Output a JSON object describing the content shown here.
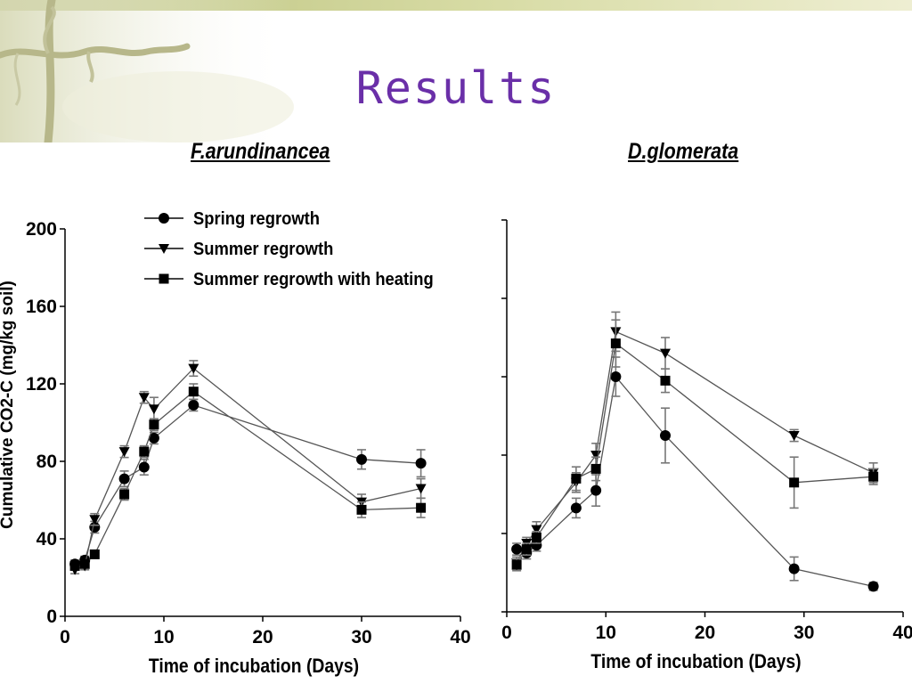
{
  "slide": {
    "title": "Results",
    "colors": {
      "title": "#6a2fa8",
      "band": "#c8cc8e",
      "decor": "#b9b98a"
    }
  },
  "chart_data": [
    {
      "type": "line",
      "title": "F.arundinancea",
      "xlabel": "Time of incubation (Days)",
      "ylabel": "Cumulative CO2-C (mg/kg soil)",
      "xlim": [
        0,
        40
      ],
      "ylim": [
        0,
        200
      ],
      "xticks": [
        0,
        10,
        20,
        30,
        40
      ],
      "yticks": [
        0,
        40,
        80,
        120,
        160,
        200
      ],
      "grid": false,
      "legend": "top-left",
      "series": [
        {
          "name": "Spring regrowth",
          "marker": "circle",
          "points": [
            [
              1,
              27
            ],
            [
              2,
              29
            ],
            [
              3,
              46
            ],
            [
              6,
              71
            ],
            [
              8,
              77
            ],
            [
              9,
              92
            ],
            [
              13,
              109
            ],
            [
              30,
              81
            ],
            [
              36,
              79
            ]
          ],
          "err": [
            2,
            2,
            3,
            4,
            4,
            3,
            3,
            5,
            7
          ]
        },
        {
          "name": "Summer regrowth",
          "marker": "triangle-down",
          "points": [
            [
              1,
              24
            ],
            [
              2,
              26
            ],
            [
              3,
              50
            ],
            [
              6,
              85
            ],
            [
              8,
              113
            ],
            [
              9,
              107
            ],
            [
              13,
              128
            ],
            [
              30,
              59
            ],
            [
              36,
              66
            ]
          ],
          "err": [
            2,
            2,
            3,
            3,
            3,
            6,
            4,
            4,
            5
          ]
        },
        {
          "name": "Summer regrowth with heating",
          "marker": "square",
          "points": [
            [
              1,
              26
            ],
            [
              2,
              27
            ],
            [
              3,
              32
            ],
            [
              6,
              63
            ],
            [
              8,
              85
            ],
            [
              9,
              99
            ],
            [
              13,
              116
            ],
            [
              30,
              55
            ],
            [
              36,
              56
            ]
          ],
          "err": [
            2,
            2,
            2,
            3,
            3,
            3,
            4,
            4,
            5
          ]
        }
      ]
    },
    {
      "type": "line",
      "title": "D.glomerata",
      "xlabel": "Time of incubation (Days)",
      "ylabel": "",
      "xlim": [
        0,
        40
      ],
      "ylim": [
        0,
        200
      ],
      "xticks": [
        0,
        10,
        20,
        30,
        40
      ],
      "yticks": [
        0,
        40,
        80,
        120,
        160,
        200
      ],
      "show_ytick_labels": false,
      "grid": false,
      "legend": "none",
      "series": [
        {
          "name": "Spring regrowth",
          "marker": "circle",
          "points": [
            [
              1,
              32
            ],
            [
              2,
              30
            ],
            [
              3,
              34
            ],
            [
              7,
              53
            ],
            [
              9,
              62
            ],
            [
              11,
              120
            ],
            [
              16,
              90
            ],
            [
              29,
              22
            ],
            [
              37,
              13
            ]
          ],
          "err": [
            3,
            3,
            3,
            5,
            8,
            10,
            14,
            6,
            2
          ]
        },
        {
          "name": "Summer regrowth",
          "marker": "triangle-down",
          "points": [
            [
              1,
              25
            ],
            [
              2,
              35
            ],
            [
              3,
              42
            ],
            [
              7,
              66
            ],
            [
              9,
              80
            ],
            [
              11,
              143
            ],
            [
              16,
              132
            ],
            [
              29,
              90
            ],
            [
              37,
              71
            ]
          ],
          "err": [
            3,
            3,
            4,
            5,
            6,
            10,
            8,
            3,
            5
          ]
        },
        {
          "name": "Summer regrowth with heating",
          "marker": "square",
          "points": [
            [
              1,
              24
            ],
            [
              2,
              32
            ],
            [
              3,
              38
            ],
            [
              7,
              68
            ],
            [
              9,
              73
            ],
            [
              11,
              137
            ],
            [
              16,
              118
            ],
            [
              29,
              66
            ],
            [
              37,
              69
            ]
          ],
          "err": [
            3,
            3,
            3,
            6,
            6,
            12,
            6,
            13,
            4
          ]
        }
      ]
    }
  ]
}
